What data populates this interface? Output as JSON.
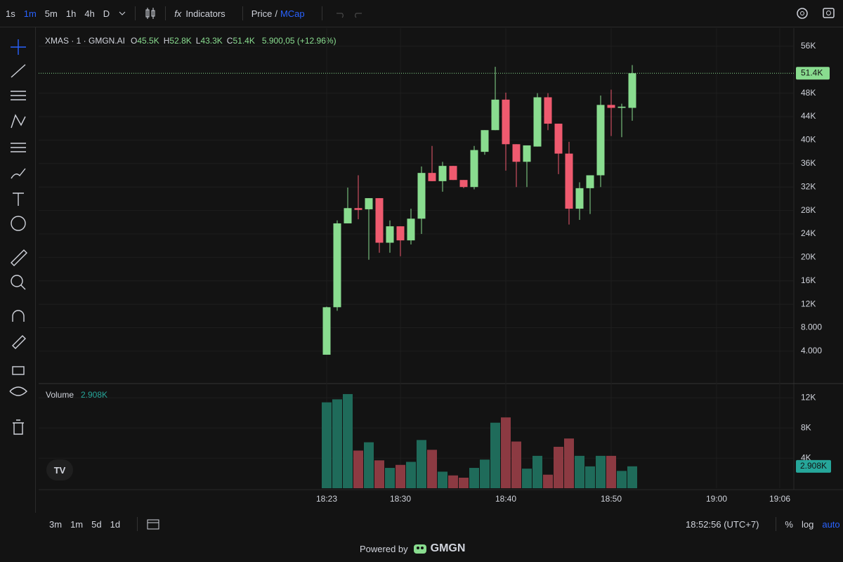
{
  "chart_data": {
    "type": "candlestick",
    "symbol": "XMAS · 1 · GMGN.AI",
    "legend_ohlc": [
      {
        "key": "O",
        "label": "45.5K"
      },
      {
        "key": "H",
        "label": "52.8K"
      },
      {
        "key": "L",
        "label": "43.3K"
      },
      {
        "key": "C",
        "label": "51.4K"
      }
    ],
    "change_label": "5.900,05 (+12.96%)",
    "categories": [
      "18:23",
      null,
      null,
      null,
      null,
      null,
      null,
      "18:30",
      null,
      null,
      null,
      null,
      null,
      null,
      null,
      null,
      null,
      "18:40",
      null,
      null,
      null,
      null,
      null,
      null,
      null,
      null,
      null,
      "18:50",
      null,
      null,
      null,
      null,
      null,
      null,
      null,
      null,
      null,
      "19:00",
      null,
      null,
      null,
      null,
      null,
      "19:06"
    ],
    "open": [
      3400,
      11500,
      25800,
      28400,
      28200,
      30100,
      22500,
      25300,
      22900,
      26600,
      34400,
      33000,
      35600,
      33200,
      32000,
      38000,
      41700,
      46900,
      39300,
      36300,
      38900,
      47300,
      42800,
      37700,
      28300,
      31800,
      34000,
      46000,
      45500,
      45500,
      null,
      null,
      null,
      null,
      null,
      null,
      null,
      null,
      null,
      null,
      null,
      null,
      null,
      null
    ],
    "high": [
      11600,
      26300,
      31900,
      34000,
      30100,
      30100,
      26300,
      25300,
      28300,
      35500,
      39000,
      36300,
      35600,
      33200,
      39000,
      41700,
      52500,
      48100,
      39300,
      39100,
      48000,
      48000,
      42800,
      39700,
      32800,
      34000,
      47600,
      48600,
      46200,
      52800,
      null,
      null,
      null,
      null,
      null,
      null,
      null,
      null,
      null,
      null,
      null,
      null,
      null,
      null
    ],
    "low": [
      3400,
      10900,
      25800,
      26500,
      19600,
      20800,
      20800,
      20200,
      22200,
      24000,
      33000,
      31200,
      33200,
      31800,
      31600,
      37500,
      41700,
      34800,
      32000,
      32000,
      38900,
      41700,
      34200,
      25600,
      26400,
      27400,
      32000,
      40700,
      40500,
      43300,
      null,
      null,
      null,
      null,
      null,
      null,
      null,
      null,
      null,
      null,
      null,
      null,
      null,
      null
    ],
    "close": [
      11500,
      25800,
      28400,
      28100,
      30100,
      22500,
      25300,
      22900,
      26600,
      34400,
      33000,
      35600,
      33200,
      32000,
      38300,
      41700,
      46900,
      39300,
      36300,
      39100,
      47300,
      42800,
      37700,
      28300,
      31800,
      34000,
      46000,
      45500,
      45700,
      51400,
      null,
      null,
      null,
      null,
      null,
      null,
      null,
      null,
      null,
      null,
      null,
      null,
      null,
      null
    ],
    "volume": [
      11400,
      11800,
      12500,
      5000,
      6100,
      3700,
      2700,
      3100,
      3500,
      6400,
      5100,
      2200,
      1700,
      1400,
      2700,
      3800,
      8700,
      9400,
      6200,
      2600,
      4300,
      1800,
      5500,
      6600,
      4300,
      2900,
      4300,
      4300,
      2300,
      2908,
      null,
      null,
      null,
      null,
      null,
      null,
      null,
      null,
      null,
      null,
      null,
      null,
      null,
      null
    ],
    "up_color": "#89dc8f",
    "down_color": "#ef5a6f",
    "volume_up_color": "#1f6b5a",
    "volume_down_color": "#8c3a42",
    "ylim": [
      -1400,
      59100
    ],
    "yticks": [
      {
        "value": 4000,
        "label": "4.000"
      },
      {
        "value": 8000,
        "label": "8.000"
      },
      {
        "value": 12000,
        "label": "12K"
      },
      {
        "value": 16000,
        "label": "16K"
      },
      {
        "value": 20000,
        "label": "20K"
      },
      {
        "value": 24000,
        "label": "24K"
      },
      {
        "value": 28000,
        "label": "28K"
      },
      {
        "value": 32000,
        "label": "32K"
      },
      {
        "value": 36000,
        "label": "36K"
      },
      {
        "value": 40000,
        "label": "40K"
      },
      {
        "value": 44000,
        "label": "44K"
      },
      {
        "value": 48000,
        "label": "48K"
      },
      {
        "value": 56000,
        "label": "56K"
      }
    ],
    "last_price": {
      "value": 51400,
      "label": "51.4K"
    },
    "volume_legend": {
      "name": "Volume",
      "label": "2.908K"
    },
    "volume_ylim": [
      0,
      13800
    ],
    "volume_yticks": [
      {
        "value": 4000,
        "label": "4K"
      },
      {
        "value": 8000,
        "label": "8K"
      },
      {
        "value": 12000,
        "label": "12K"
      }
    ],
    "grid": true
  },
  "ui": {
    "intervals": [
      "1s",
      "1m",
      "5m",
      "1h",
      "4h",
      "D"
    ],
    "indicators": "Indicators",
    "price": "Price",
    "slash": "/",
    "mcap": "MCap",
    "ranges": [
      "3m",
      "1m",
      "5d",
      "1d"
    ],
    "clock": "18:52:56 (UTC+7)",
    "percent": "%",
    "log": "log",
    "auto": "auto",
    "powered": "Powered by",
    "brand": "GMGN"
  }
}
